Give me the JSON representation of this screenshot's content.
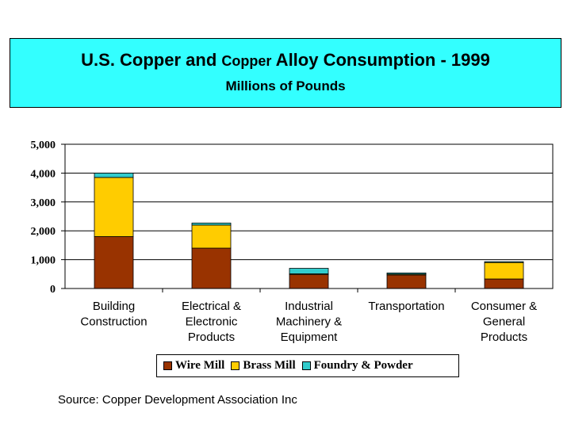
{
  "title": {
    "part1": "U.S. Copper and ",
    "part2": "Copper",
    "part3": " Alloy Consumption - 1999",
    "subtitle": "Millions of Pounds"
  },
  "source": "Source: Copper Development Association Inc",
  "colors": {
    "wire_mill": "#993300",
    "brass_mill": "#ffcc00",
    "foundry_powder": "#33cccc",
    "title_background": "#33ffff"
  },
  "chart_data": {
    "type": "bar",
    "stacked": true,
    "categories": [
      [
        "Building",
        "Construction"
      ],
      [
        "Electrical &",
        "Electronic",
        "Products"
      ],
      [
        "Industrial",
        "Machinery &",
        "Equipment"
      ],
      [
        "Transportation"
      ],
      [
        "Consumer &",
        "General",
        "Products"
      ]
    ],
    "series": [
      {
        "name": "Wire Mill",
        "color": "#993300",
        "values": [
          1800,
          1400,
          480,
          470,
          330
        ]
      },
      {
        "name": "Brass Mill",
        "color": "#ffcc00",
        "values": [
          2050,
          800,
          30,
          30,
          570
        ]
      },
      {
        "name": "Foundry & Powder",
        "color": "#33cccc",
        "values": [
          150,
          70,
          190,
          40,
          30
        ]
      }
    ],
    "ylim": [
      0,
      5000
    ],
    "yticks": [
      "0",
      "1,000",
      "2,000",
      "3,000",
      "4,000",
      "5,000"
    ],
    "ytick_values": [
      0,
      1000,
      2000,
      3000,
      4000,
      5000
    ],
    "grid": true,
    "legend_position": "bottom"
  }
}
